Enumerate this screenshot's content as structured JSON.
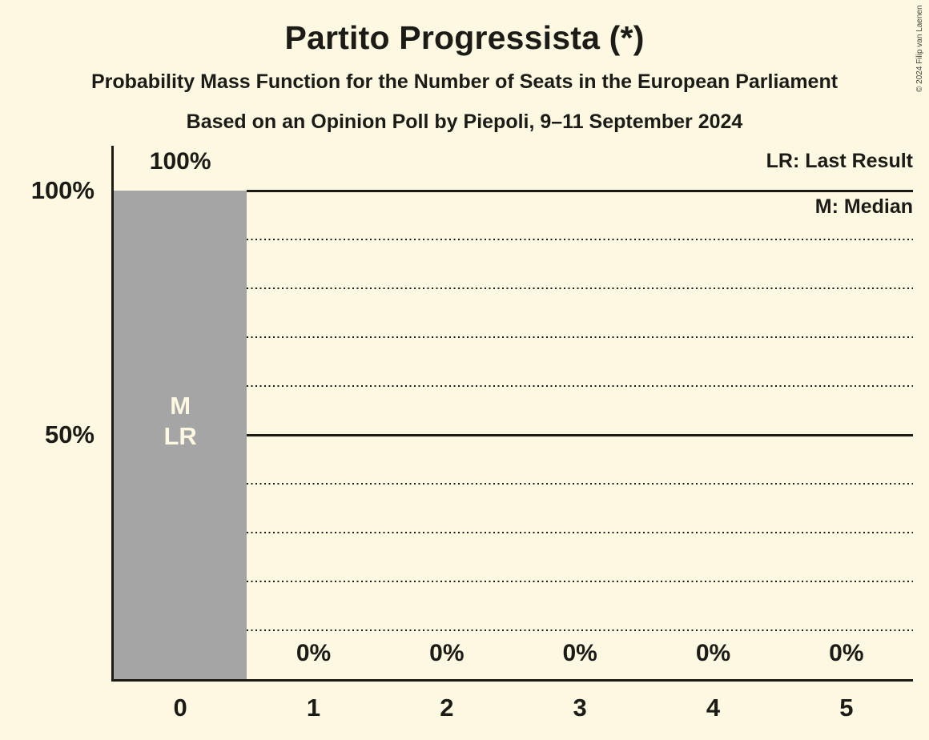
{
  "page": {
    "copyright": "© 2024 Filip van Laenen"
  },
  "chart_data": {
    "type": "bar",
    "title": "Partito Progressista (*)",
    "subtitle": "Probability Mass Function for the Number of Seats in the European Parliament",
    "subtitle2": "Based on an Opinion Poll by Piepoli, 9–11 September 2024",
    "xlabel": "",
    "ylabel": "",
    "categories": [
      "0",
      "1",
      "2",
      "3",
      "4",
      "5"
    ],
    "values": [
      100,
      0,
      0,
      0,
      0,
      0
    ],
    "value_labels": [
      "100%",
      "0%",
      "0%",
      "0%",
      "0%",
      "0%"
    ],
    "ylim": [
      0,
      100
    ],
    "yticks": [
      {
        "value": 100,
        "label": "100%"
      },
      {
        "value": 50,
        "label": "50%"
      }
    ],
    "gridlines": {
      "solid": [
        100,
        50
      ],
      "dotted": [
        90,
        80,
        70,
        60,
        40,
        30,
        20,
        10
      ]
    },
    "grid": true,
    "legend": [
      "LR: Last Result",
      "M: Median"
    ],
    "legend_position": "top-right",
    "bar_annotations": [
      {
        "bar": 0,
        "lines": [
          "M",
          "LR"
        ]
      }
    ],
    "colors": {
      "background": "#FDF8E2",
      "bar": "#A5A5A5",
      "ink": "#1C1B16",
      "bar_text": "#FDF8E2"
    }
  }
}
